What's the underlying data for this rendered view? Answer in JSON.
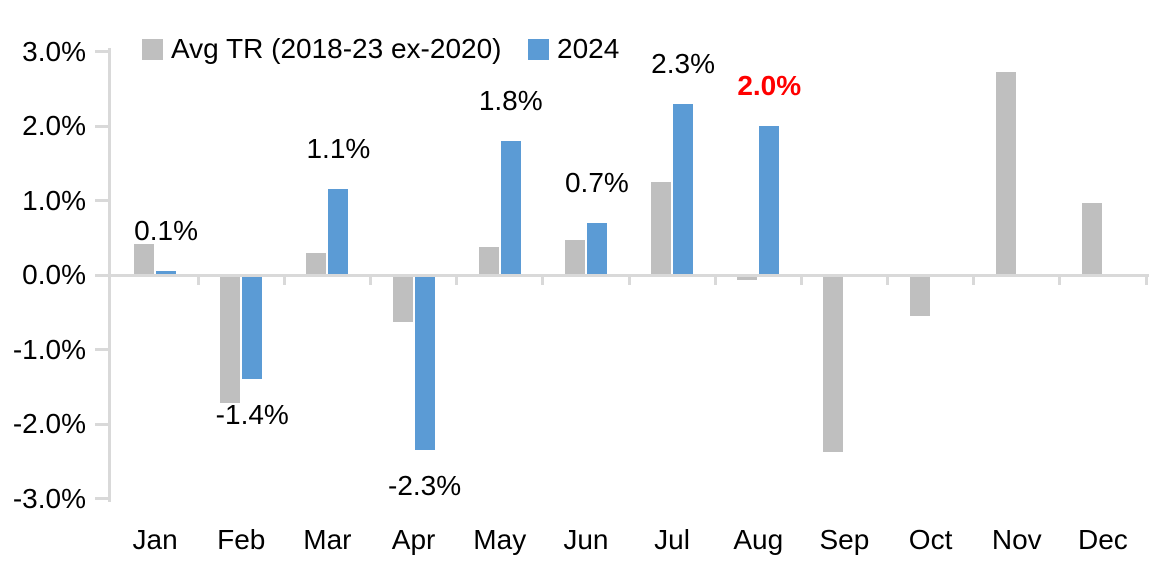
{
  "legend": {
    "items": [
      {
        "label": "Avg TR (2018-23 ex-2020)",
        "color": "#BFBFBF"
      },
      {
        "label": "2024",
        "color": "#5B9BD5"
      }
    ]
  },
  "chart_data": {
    "type": "bar",
    "title": "",
    "categories": [
      "Jan",
      "Feb",
      "Mar",
      "Apr",
      "May",
      "Jun",
      "Jul",
      "Aug",
      "Sep",
      "Oct",
      "Nov",
      "Dec"
    ],
    "series": [
      {
        "name": "Avg TR (2018-23 ex-2020)",
        "color": "#BFBFBF",
        "values": [
          0.42,
          -1.72,
          0.3,
          -0.63,
          0.38,
          0.47,
          1.25,
          -0.07,
          -2.37,
          -0.55,
          2.73,
          0.97
        ]
      },
      {
        "name": "2024",
        "color": "#5B9BD5",
        "values": [
          0.05,
          -1.4,
          1.15,
          -2.35,
          1.8,
          0.7,
          2.3,
          2.0,
          null,
          null,
          null,
          null
        ]
      }
    ],
    "data_labels": [
      {
        "category": "Jan",
        "text": "0.1%",
        "position": "above",
        "color": "#000000",
        "bold": false
      },
      {
        "category": "Feb",
        "text": "-1.4%",
        "position": "below",
        "color": "#000000",
        "bold": false
      },
      {
        "category": "Mar",
        "text": "1.1%",
        "position": "above",
        "color": "#000000",
        "bold": false
      },
      {
        "category": "Apr",
        "text": "-2.3%",
        "position": "below",
        "color": "#000000",
        "bold": false
      },
      {
        "category": "May",
        "text": "1.8%",
        "position": "above",
        "color": "#000000",
        "bold": false
      },
      {
        "category": "Jun",
        "text": "0.7%",
        "position": "above",
        "color": "#000000",
        "bold": false
      },
      {
        "category": "Jul",
        "text": "2.3%",
        "position": "above",
        "color": "#000000",
        "bold": false
      },
      {
        "category": "Aug",
        "text": "2.0%",
        "position": "above",
        "color": "#FF0000",
        "bold": true
      }
    ],
    "y_axis": {
      "min": -3,
      "max": 3,
      "tick_step": 1,
      "tick_labels": [
        "3.0%",
        "2.0%",
        "1.0%",
        "0.0%",
        "-1.0%",
        "-2.0%",
        "-3.0%"
      ]
    },
    "x_axis": {
      "labels": [
        "Jan",
        "Feb",
        "Mar",
        "Apr",
        "May",
        "Jun",
        "Jul",
        "Aug",
        "Sep",
        "Oct",
        "Nov",
        "Dec"
      ]
    },
    "axis_color": "#D9D9D9",
    "grid": false,
    "legend_position": "top"
  }
}
